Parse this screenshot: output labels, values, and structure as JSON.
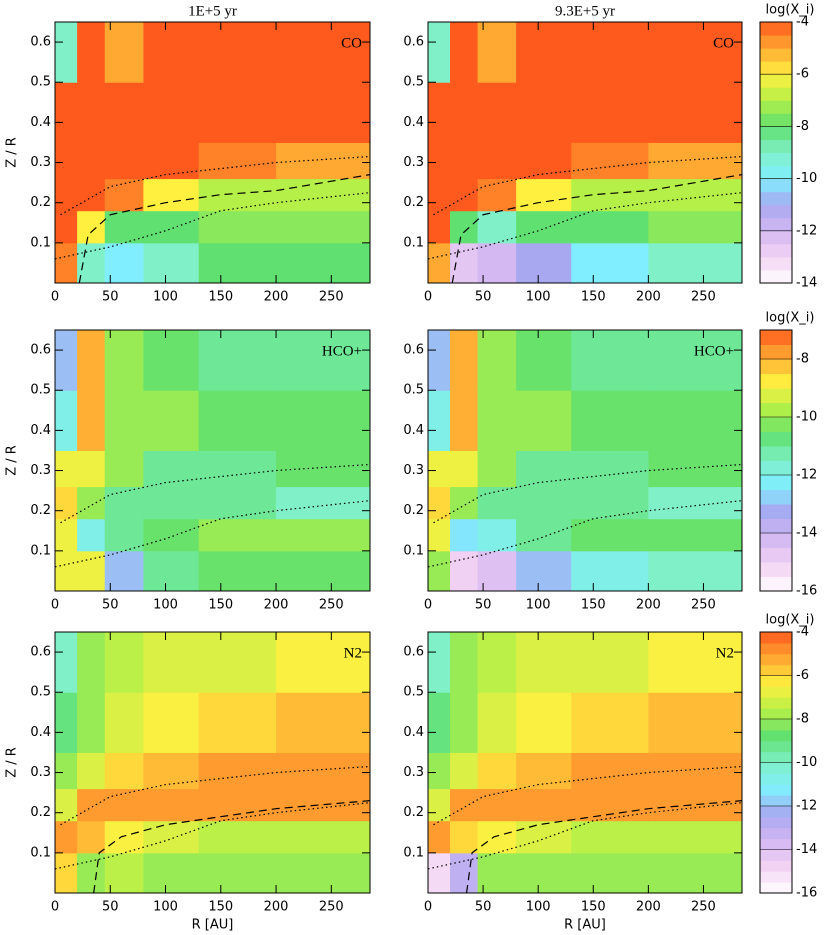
{
  "chart_data": [
    {
      "type": "heatmap",
      "title": "1E+5 yr",
      "annotation": "CO",
      "ylabel": "Z / R",
      "xlim": [
        0,
        285
      ],
      "xticks": [
        0,
        50,
        100,
        150,
        200,
        250
      ],
      "ylim": [
        0,
        0.65
      ],
      "yticks": [
        0.1,
        0.2,
        0.3,
        0.4,
        0.5,
        0.6
      ],
      "xbins": [
        0,
        20,
        45,
        80,
        130,
        200,
        285
      ],
      "ybins": [
        0,
        0.1,
        0.18,
        0.26,
        0.35,
        0.5,
        0.65
      ],
      "zlim": [
        -14,
        -4
      ],
      "z": [
        [
          -4.5,
          -9,
          -10,
          -9,
          -8,
          -8
        ],
        [
          -4,
          -6,
          -8,
          -8,
          -7.5,
          -7.5
        ],
        [
          -4,
          -4,
          -4.5,
          -6,
          -7,
          -7
        ],
        [
          -4,
          -4,
          -4,
          -4,
          -4.5,
          -5
        ],
        [
          -4,
          -4,
          -4,
          -4,
          -4,
          -4
        ],
        [
          -9,
          -4,
          -5,
          -4,
          -4,
          -4
        ]
      ],
      "contours": [
        {
          "style": "dotted",
          "x": [
            5,
            50,
            100,
            150,
            200,
            285
          ],
          "values": [
            0.17,
            0.24,
            0.27,
            0.285,
            0.3,
            0.315
          ]
        },
        {
          "style": "dotted",
          "x": [
            0,
            50,
            100,
            150,
            200,
            285
          ],
          "values": [
            0.06,
            0.09,
            0.13,
            0.18,
            0.2,
            0.225
          ]
        },
        {
          "style": "dashed",
          "x": [
            22,
            30,
            50,
            100,
            150,
            200,
            285
          ],
          "values": [
            0.0,
            0.12,
            0.17,
            0.2,
            0.22,
            0.23,
            0.27
          ]
        }
      ]
    },
    {
      "type": "heatmap",
      "title": "9.3E+5 yr",
      "annotation": "CO",
      "xlim": [
        0,
        285
      ],
      "xticks": [
        0,
        50,
        100,
        150,
        200,
        250
      ],
      "ylim": [
        0,
        0.65
      ],
      "yticks": [
        0.1,
        0.2,
        0.3,
        0.4,
        0.5,
        0.6
      ],
      "xbins": [
        0,
        20,
        45,
        80,
        130,
        200,
        285
      ],
      "ybins": [
        0,
        0.1,
        0.18,
        0.26,
        0.35,
        0.5,
        0.65
      ],
      "zlim": [
        -14,
        -4
      ],
      "z": [
        [
          -5,
          -12.5,
          -12,
          -11,
          -10,
          -9
        ],
        [
          -4,
          -8,
          -9,
          -8,
          -8,
          -7.5
        ],
        [
          -4,
          -4,
          -4.5,
          -6,
          -7,
          -7
        ],
        [
          -4,
          -4,
          -4,
          -4,
          -4.5,
          -5
        ],
        [
          -4,
          -4,
          -4,
          -4,
          -4,
          -4
        ],
        [
          -9,
          -4,
          -5,
          -4,
          -4,
          -4
        ]
      ],
      "colorbar": {
        "label": "log(X_i)",
        "ticks": [
          -4,
          -6,
          -8,
          -10,
          -12,
          -14
        ]
      },
      "contours": [
        {
          "style": "dotted",
          "x": [
            5,
            50,
            100,
            150,
            200,
            285
          ],
          "values": [
            0.17,
            0.24,
            0.27,
            0.285,
            0.3,
            0.315
          ]
        },
        {
          "style": "dotted",
          "x": [
            0,
            50,
            100,
            150,
            200,
            285
          ],
          "values": [
            0.06,
            0.09,
            0.13,
            0.18,
            0.2,
            0.225
          ]
        },
        {
          "style": "dashed",
          "x": [
            22,
            30,
            50,
            100,
            150,
            200,
            285
          ],
          "values": [
            0.0,
            0.12,
            0.17,
            0.2,
            0.22,
            0.23,
            0.27
          ]
        }
      ]
    },
    {
      "type": "heatmap",
      "annotation": "HCO+",
      "ylabel": "Z / R",
      "xlim": [
        0,
        285
      ],
      "xticks": [
        0,
        50,
        100,
        150,
        200,
        250
      ],
      "ylim": [
        0,
        0.65
      ],
      "yticks": [
        0.1,
        0.2,
        0.3,
        0.4,
        0.5,
        0.6
      ],
      "xbins": [
        0,
        20,
        45,
        80,
        130,
        200,
        285
      ],
      "ybins": [
        0,
        0.1,
        0.18,
        0.26,
        0.35,
        0.5,
        0.65
      ],
      "zlim": [
        -16,
        -7
      ],
      "z": [
        [
          -9,
          -9,
          -13,
          -11,
          -10.5,
          -10.5
        ],
        [
          -9,
          -12,
          -11,
          -10.5,
          -10,
          -10
        ],
        [
          -8.5,
          -10,
          -11,
          -11,
          -11,
          -11.5
        ],
        [
          -9,
          -9,
          -10,
          -11,
          -11,
          -10.5
        ],
        [
          -12,
          -8,
          -10,
          -10,
          -10.5,
          -10.5
        ],
        [
          -13,
          -8,
          -10,
          -10.5,
          -11,
          -11
        ]
      ],
      "contours": [
        {
          "style": "dotted",
          "x": [
            5,
            50,
            100,
            150,
            200,
            285
          ],
          "values": [
            0.17,
            0.24,
            0.27,
            0.285,
            0.3,
            0.315
          ]
        },
        {
          "style": "dotted",
          "x": [
            0,
            50,
            100,
            150,
            200,
            285
          ],
          "values": [
            0.06,
            0.09,
            0.13,
            0.18,
            0.2,
            0.225
          ]
        }
      ]
    },
    {
      "type": "heatmap",
      "annotation": "HCO+",
      "xlim": [
        0,
        285
      ],
      "xticks": [
        0,
        50,
        100,
        150,
        200,
        250
      ],
      "ylim": [
        0,
        0.65
      ],
      "yticks": [
        0.1,
        0.2,
        0.3,
        0.4,
        0.5,
        0.6
      ],
      "xbins": [
        0,
        20,
        45,
        80,
        130,
        200,
        285
      ],
      "ybins": [
        0,
        0.1,
        0.18,
        0.26,
        0.35,
        0.5,
        0.65
      ],
      "zlim": [
        -16,
        -7
      ],
      "z": [
        [
          -10,
          -15,
          -14.5,
          -13,
          -12,
          -11.5
        ],
        [
          -9,
          -12.5,
          -12,
          -11,
          -10.5,
          -10.5
        ],
        [
          -8.5,
          -10,
          -11,
          -11,
          -11,
          -11.5
        ],
        [
          -9,
          -9,
          -10,
          -11,
          -11,
          -10.5
        ],
        [
          -12,
          -8,
          -10,
          -10,
          -10.5,
          -10.5
        ],
        [
          -13,
          -8,
          -10,
          -10.5,
          -11,
          -11
        ]
      ],
      "colorbar": {
        "label": "log(X_i)",
        "ticks": [
          -8,
          -10,
          -12,
          -14,
          -16
        ]
      },
      "contours": [
        {
          "style": "dotted",
          "x": [
            5,
            50,
            100,
            150,
            200,
            285
          ],
          "values": [
            0.17,
            0.24,
            0.27,
            0.285,
            0.3,
            0.315
          ]
        },
        {
          "style": "dotted",
          "x": [
            0,
            50,
            100,
            150,
            200,
            285
          ],
          "values": [
            0.06,
            0.09,
            0.13,
            0.18,
            0.2,
            0.225
          ]
        }
      ]
    },
    {
      "type": "heatmap",
      "annotation": "N2",
      "ylabel": "Z / R",
      "xlabel": "R [AU]",
      "xlim": [
        0,
        285
      ],
      "xticks": [
        0,
        50,
        100,
        150,
        200,
        250
      ],
      "ylim": [
        0,
        0.65
      ],
      "yticks": [
        0.1,
        0.2,
        0.3,
        0.4,
        0.5,
        0.6
      ],
      "xbins": [
        0,
        20,
        45,
        80,
        130,
        200,
        285
      ],
      "ybins": [
        0,
        0.1,
        0.18,
        0.26,
        0.35,
        0.5,
        0.65
      ],
      "zlim": [
        -16,
        -4
      ],
      "z": [
        [
          -6,
          -8,
          -7.5,
          -8,
          -8,
          -8
        ],
        [
          -5,
          -5.5,
          -6.5,
          -7,
          -7.5,
          -7.5
        ],
        [
          -7,
          -5,
          -5,
          -5,
          -5,
          -5
        ],
        [
          -8,
          -7,
          -6,
          -5.5,
          -5,
          -5
        ],
        [
          -9,
          -8,
          -7,
          -6.5,
          -6,
          -5.5
        ],
        [
          -10,
          -8,
          -7.5,
          -7,
          -7,
          -6.5
        ]
      ],
      "contours": [
        {
          "style": "dotted",
          "x": [
            5,
            50,
            100,
            150,
            200,
            285
          ],
          "values": [
            0.17,
            0.24,
            0.27,
            0.285,
            0.3,
            0.315
          ]
        },
        {
          "style": "dotted",
          "x": [
            0,
            50,
            100,
            150,
            200,
            285
          ],
          "values": [
            0.06,
            0.09,
            0.13,
            0.18,
            0.2,
            0.225
          ]
        },
        {
          "style": "dashed",
          "x": [
            35,
            40,
            60,
            100,
            150,
            200,
            285
          ],
          "values": [
            0,
            0.1,
            0.14,
            0.17,
            0.19,
            0.21,
            0.23
          ]
        }
      ]
    },
    {
      "type": "heatmap",
      "annotation": "N2",
      "xlabel": "R [AU]",
      "xlim": [
        0,
        285
      ],
      "xticks": [
        0,
        50,
        100,
        150,
        200,
        250
      ],
      "ylim": [
        0,
        0.65
      ],
      "yticks": [
        0.1,
        0.2,
        0.3,
        0.4,
        0.5,
        0.6
      ],
      "xbins": [
        0,
        20,
        45,
        80,
        130,
        200,
        285
      ],
      "ybins": [
        0,
        0.1,
        0.18,
        0.26,
        0.35,
        0.5,
        0.65
      ],
      "zlim": [
        -16,
        -4
      ],
      "z": [
        [
          -15,
          -13,
          -8,
          -8,
          -8,
          -8
        ],
        [
          -5,
          -6,
          -6.5,
          -7,
          -7.5,
          -7.5
        ],
        [
          -7,
          -5,
          -5,
          -5,
          -5,
          -5
        ],
        [
          -8,
          -7,
          -6,
          -5.5,
          -5,
          -5
        ],
        [
          -9,
          -8,
          -7,
          -6.5,
          -6,
          -5.5
        ],
        [
          -10,
          -8,
          -7.5,
          -7,
          -7,
          -6.5
        ]
      ],
      "colorbar": {
        "label": "log(X_i)",
        "ticks": [
          -4,
          -6,
          -8,
          -10,
          -12,
          -14,
          -16
        ]
      },
      "contours": [
        {
          "style": "dotted",
          "x": [
            5,
            50,
            100,
            150,
            200,
            285
          ],
          "values": [
            0.17,
            0.24,
            0.27,
            0.285,
            0.3,
            0.315
          ]
        },
        {
          "style": "dotted",
          "x": [
            0,
            50,
            100,
            150,
            200,
            285
          ],
          "values": [
            0.06,
            0.09,
            0.13,
            0.18,
            0.2,
            0.225
          ]
        },
        {
          "style": "dashed",
          "x": [
            35,
            40,
            60,
            100,
            150,
            200,
            285
          ],
          "values": [
            0,
            0.1,
            0.14,
            0.17,
            0.19,
            0.21,
            0.23
          ]
        }
      ]
    }
  ]
}
